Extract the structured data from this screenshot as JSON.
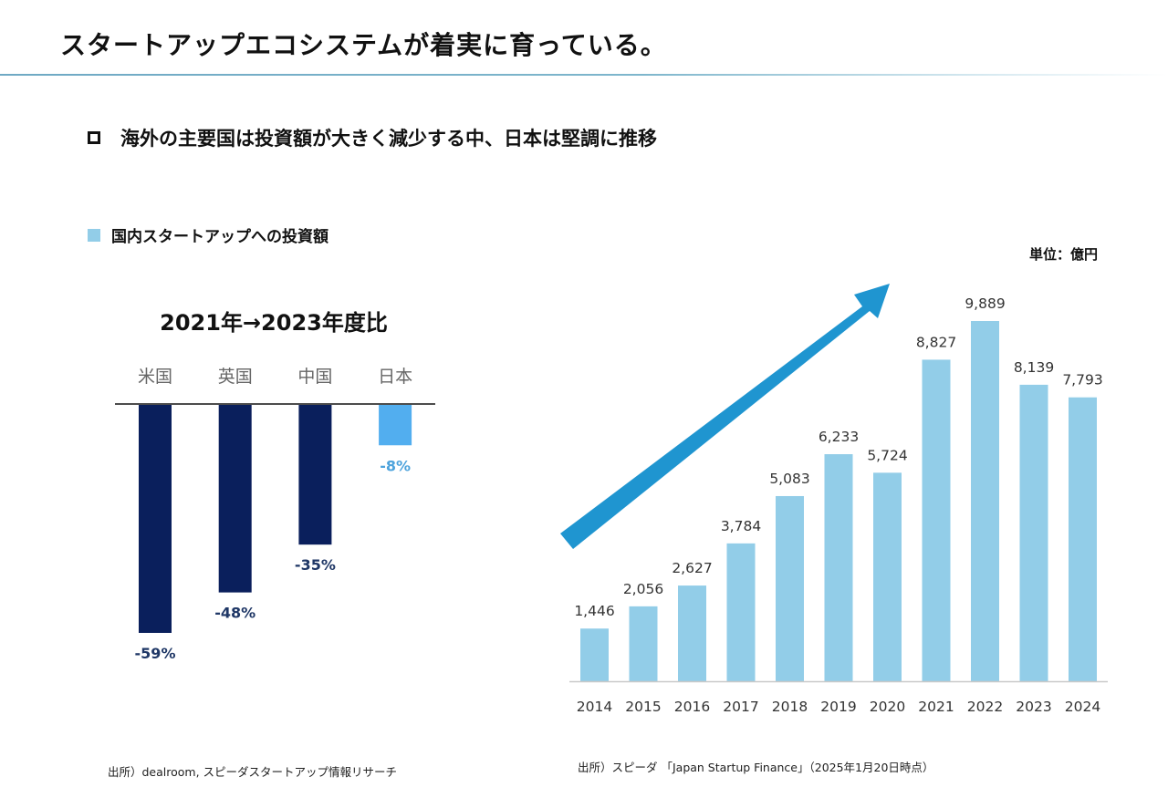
{
  "header": {
    "title": "スタートアップエコシステムが着実に育っている。"
  },
  "subtitle": {
    "bullet_icon": "hollow-square",
    "text": "海外の主要国は投資額が大きく減少する中、日本は堅調に推移"
  },
  "legend": {
    "label": "国内スタートアップへの投資額",
    "color": "#92cde8"
  },
  "unit_label": "単位：億円",
  "sources": {
    "left": "出所）dealroom, スピーダスタートアップ情報リサーチ",
    "right": "出所）スピーダ 「Japan Startup Finance」（2025年1月20日時点）"
  },
  "colors": {
    "navy_bar": "#0a1f5c",
    "japan_bar": "#52aeef",
    "japan_label": "#4da3dc",
    "navy_label": "#1f3766",
    "investment_bar": "#92cde8",
    "arrow": "#1f95d0"
  },
  "chart_data": [
    {
      "type": "bar",
      "title": "2021年→2023年度比",
      "categories": [
        "米国",
        "英国",
        "中国",
        "日本"
      ],
      "values": [
        -59,
        -48,
        -35,
        -8
      ],
      "value_labels": [
        "-59%",
        "-48%",
        "-35%",
        "-8%"
      ],
      "unit": "%",
      "xlabel": "",
      "ylabel": "",
      "ylim": [
        -60,
        0
      ],
      "grid": false,
      "category_axis_position": "top",
      "highlight_category": "日本"
    },
    {
      "type": "bar",
      "title": "国内スタートアップへの投資額",
      "categories": [
        "2014",
        "2015",
        "2016",
        "2017",
        "2018",
        "2019",
        "2020",
        "2021",
        "2022",
        "2023",
        "2024"
      ],
      "values": [
        1446,
        2056,
        2627,
        3784,
        5083,
        6233,
        5724,
        8827,
        9889,
        8139,
        7793
      ],
      "value_labels": [
        "1,446",
        "2,056",
        "2,627",
        "3,784",
        "5,083",
        "6,233",
        "5,724",
        "8,827",
        "9,889",
        "8,139",
        "7,793"
      ],
      "unit": "億円",
      "xlabel": "",
      "ylabel": "",
      "ylim": [
        0,
        10000
      ],
      "grid": false,
      "legend": "top-left",
      "annotation": "upward-trend-arrow"
    }
  ]
}
